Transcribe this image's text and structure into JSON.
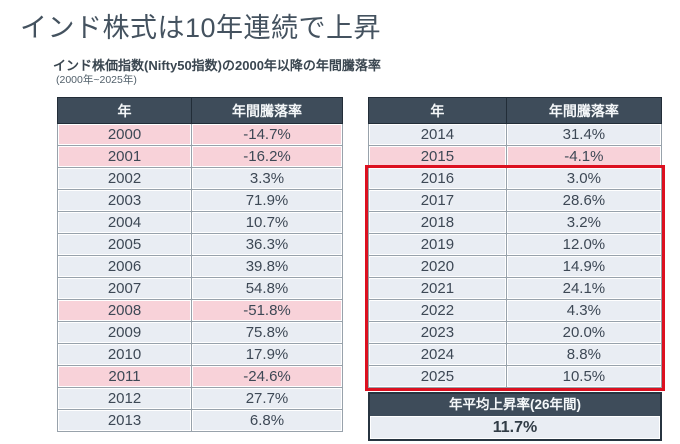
{
  "title": "インド株式は10年連続で上昇",
  "subtitle": "インド株価指数(Nifty50指数)の2000年以降の年間騰落率",
  "subtitle_note": "(2000年~2025年)",
  "colors": {
    "header_bg": "#3e4c5a",
    "header_text": "#f4f7f9",
    "row_bg": "#e9edf3",
    "negative_row_bg": "#f8d2d9",
    "cell_text": "#3d4855",
    "grid_line": "#98a2ab",
    "red_box_border": "#dc1020",
    "title_text": "#44525f"
  },
  "left_table": {
    "headers": [
      "年",
      "年間騰落率"
    ],
    "rows": [
      {
        "year": "2000",
        "value": "-14.7%",
        "negative": true
      },
      {
        "year": "2001",
        "value": "-16.2%",
        "negative": true
      },
      {
        "year": "2002",
        "value": "3.3%",
        "negative": false
      },
      {
        "year": "2003",
        "value": "71.9%",
        "negative": false
      },
      {
        "year": "2004",
        "value": "10.7%",
        "negative": false
      },
      {
        "year": "2005",
        "value": "36.3%",
        "negative": false
      },
      {
        "year": "2006",
        "value": "39.8%",
        "negative": false
      },
      {
        "year": "2007",
        "value": "54.8%",
        "negative": false
      },
      {
        "year": "2008",
        "value": "-51.8%",
        "negative": true
      },
      {
        "year": "2009",
        "value": "75.8%",
        "negative": false
      },
      {
        "year": "2010",
        "value": "17.9%",
        "negative": false
      },
      {
        "year": "2011",
        "value": "-24.6%",
        "negative": true
      },
      {
        "year": "2012",
        "value": "27.7%",
        "negative": false
      },
      {
        "year": "2013",
        "value": "6.8%",
        "negative": false
      }
    ]
  },
  "right_table": {
    "headers": [
      "年",
      "年間騰落率"
    ],
    "rows": [
      {
        "year": "2014",
        "value": "31.4%",
        "negative": false
      },
      {
        "year": "2015",
        "value": "-4.1%",
        "negative": true
      },
      {
        "year": "2016",
        "value": "3.0%",
        "negative": false
      },
      {
        "year": "2017",
        "value": "28.6%",
        "negative": false
      },
      {
        "year": "2018",
        "value": "3.2%",
        "negative": false
      },
      {
        "year": "2019",
        "value": "12.0%",
        "negative": false
      },
      {
        "year": "2020",
        "value": "14.9%",
        "negative": false
      },
      {
        "year": "2021",
        "value": "24.1%",
        "negative": false
      },
      {
        "year": "2022",
        "value": "4.3%",
        "negative": false
      },
      {
        "year": "2023",
        "value": "20.0%",
        "negative": false
      },
      {
        "year": "2024",
        "value": "8.8%",
        "negative": false
      },
      {
        "year": "2025",
        "value": "10.5%",
        "negative": false
      }
    ],
    "red_box_year_range": [
      "2016",
      "2025"
    ]
  },
  "summary": {
    "label": "年平均上昇率(26年間)",
    "value": "11.7%"
  },
  "chart_data": {
    "type": "table",
    "title": "インド株式は10年連続で上昇",
    "subtitle": "インド株価指数(Nifty50指数)の2000年以降の年間騰落率(2000年~2025年)",
    "categories": [
      "2000",
      "2001",
      "2002",
      "2003",
      "2004",
      "2005",
      "2006",
      "2007",
      "2008",
      "2009",
      "2010",
      "2011",
      "2012",
      "2013",
      "2014",
      "2015",
      "2016",
      "2017",
      "2018",
      "2019",
      "2020",
      "2021",
      "2022",
      "2023",
      "2024",
      "2025"
    ],
    "values": [
      -14.7,
      -16.2,
      3.3,
      71.9,
      10.7,
      36.3,
      39.8,
      54.8,
      -51.8,
      75.8,
      17.9,
      -24.6,
      27.7,
      6.8,
      31.4,
      -4.1,
      3.0,
      28.6,
      3.2,
      12.0,
      14.9,
      24.1,
      4.3,
      20.0,
      8.8,
      10.5
    ],
    "unit": "%",
    "highlighted_negative_years": [
      "2000",
      "2001",
      "2008",
      "2011",
      "2015"
    ],
    "red_box_years": [
      "2016",
      "2017",
      "2018",
      "2019",
      "2020",
      "2021",
      "2022",
      "2023",
      "2024",
      "2025"
    ],
    "average_annual_rise_26y": 11.7
  }
}
